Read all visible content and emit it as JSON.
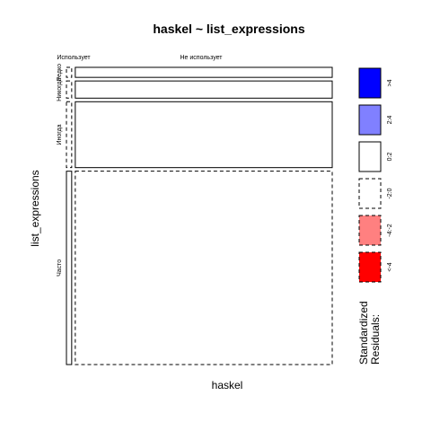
{
  "chart_data": {
    "type": "mosaic",
    "title": "haskel ~ list_expressions",
    "xlabel": "haskel",
    "ylabel": "list_expressions",
    "x_levels": [
      "Использует",
      "Не использует"
    ],
    "y_levels": [
      "Редко",
      "Никогда",
      "Иногда",
      "Часто"
    ],
    "y_levels_display": [
      "Редко",
      "Никогда",
      "Иногда",
      "Часто"
    ],
    "x_proportions": [
      0.02,
      0.98
    ],
    "y_proportions": [
      0.035,
      0.06,
      0.23,
      0.675
    ],
    "cells": [
      {
        "x": "Использует",
        "y": "Редко",
        "residual_band": "-2:0"
      },
      {
        "x": "Использует",
        "y": "Никогда",
        "residual_band": "-2:0"
      },
      {
        "x": "Использует",
        "y": "Иногда",
        "residual_band": "-2:0"
      },
      {
        "x": "Использует",
        "y": "Часто",
        "residual_band": "0:2"
      },
      {
        "x": "Не использует",
        "y": "Редко",
        "residual_band": "0:2"
      },
      {
        "x": "Не использует",
        "y": "Никогда",
        "residual_band": "0:2"
      },
      {
        "x": "Не использует",
        "y": "Иногда",
        "residual_band": "0:2"
      },
      {
        "x": "Не использует",
        "y": "Часто",
        "residual_band": "-2:0"
      }
    ],
    "legend": {
      "title_lines": [
        "Standardized",
        "Residuals:"
      ],
      "placement": "right",
      "entries": [
        {
          "label": ">4",
          "fill": "#0000ff",
          "dashed": false
        },
        {
          "label": "2:4",
          "fill": "#8080ff",
          "dashed": false
        },
        {
          "label": "0:2",
          "fill": "#ffffff",
          "dashed": false
        },
        {
          "label": "-2:0",
          "fill": "#ffffff",
          "dashed": true
        },
        {
          "label": "-4:-2",
          "fill": "#ff8080",
          "dashed": true
        },
        {
          "label": "<-4",
          "fill": "#ff0000",
          "dashed": true
        }
      ]
    }
  }
}
